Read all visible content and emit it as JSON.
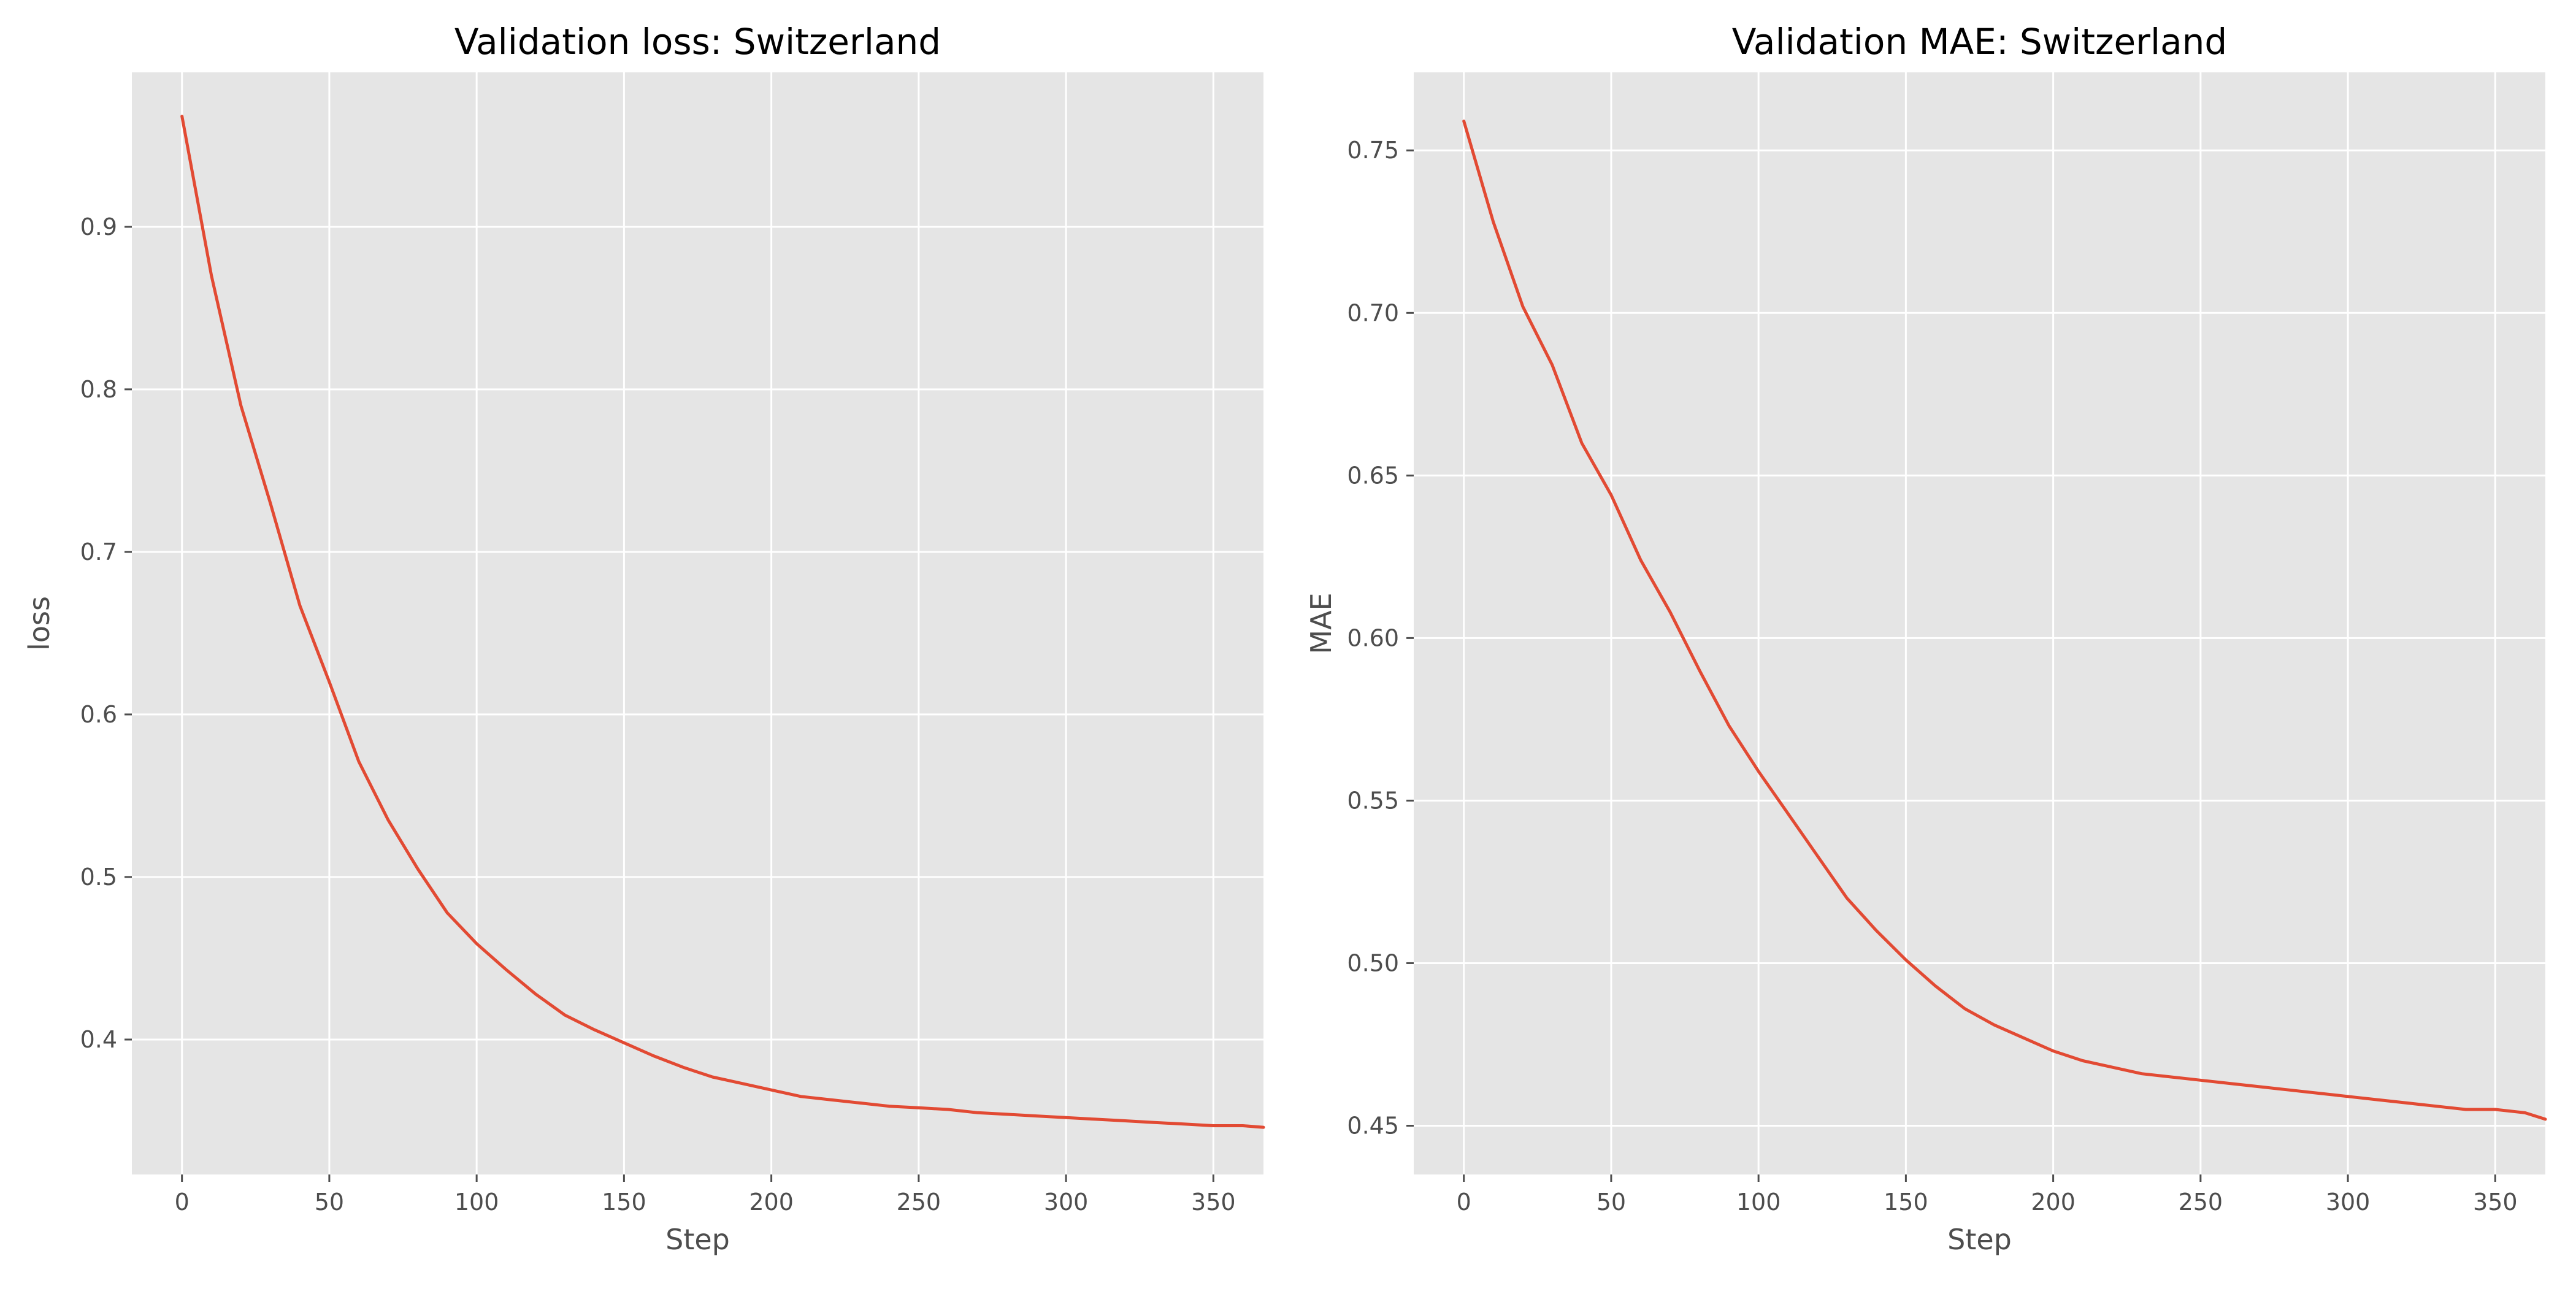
{
  "chart_data": [
    {
      "type": "line",
      "title": "Validation loss: Switzerland",
      "xlabel": "Step",
      "ylabel": "loss",
      "xlim": [
        -17,
        367
      ],
      "ylim": [
        0.317,
        0.995
      ],
      "xticks": [
        0,
        50,
        100,
        150,
        200,
        250,
        300,
        350
      ],
      "yticks": [
        0.4,
        0.5,
        0.6,
        0.7,
        0.8,
        0.9
      ],
      "ytick_labels": [
        "0.4",
        "0.5",
        "0.6",
        "0.7",
        "0.8",
        "0.9"
      ],
      "grid": true,
      "series": [
        {
          "color": "#e24a33",
          "x": [
            0,
            10,
            20,
            30,
            40,
            50,
            60,
            70,
            80,
            90,
            100,
            110,
            120,
            130,
            140,
            150,
            160,
            170,
            180,
            190,
            200,
            210,
            220,
            230,
            240,
            250,
            260,
            270,
            280,
            290,
            300,
            310,
            320,
            330,
            340,
            350,
            360,
            367
          ],
          "y": [
            0.968,
            0.87,
            0.79,
            0.73,
            0.667,
            0.62,
            0.571,
            0.535,
            0.505,
            0.478,
            0.459,
            0.443,
            0.428,
            0.415,
            0.406,
            0.398,
            0.39,
            0.383,
            0.377,
            0.373,
            0.369,
            0.365,
            0.363,
            0.361,
            0.359,
            0.358,
            0.357,
            0.355,
            0.354,
            0.353,
            0.352,
            0.351,
            0.35,
            0.349,
            0.348,
            0.347,
            0.347,
            0.346
          ]
        }
      ]
    },
    {
      "type": "line",
      "title": "Validation MAE: Switzerland",
      "xlabel": "Step",
      "ylabel": "MAE",
      "xlim": [
        -17,
        367
      ],
      "ylim": [
        0.435,
        0.774
      ],
      "xticks": [
        0,
        50,
        100,
        150,
        200,
        250,
        300,
        350
      ],
      "yticks": [
        0.45,
        0.5,
        0.55,
        0.6,
        0.65,
        0.7,
        0.75
      ],
      "ytick_labels": [
        "0.45",
        "0.50",
        "0.55",
        "0.60",
        "0.65",
        "0.70",
        "0.75"
      ],
      "grid": true,
      "series": [
        {
          "color": "#e24a33",
          "x": [
            0,
            10,
            20,
            30,
            40,
            50,
            60,
            70,
            80,
            90,
            100,
            110,
            120,
            130,
            140,
            150,
            160,
            170,
            180,
            190,
            200,
            210,
            220,
            230,
            240,
            250,
            260,
            270,
            280,
            290,
            300,
            310,
            320,
            330,
            340,
            350,
            360,
            367
          ],
          "y": [
            0.759,
            0.728,
            0.702,
            0.684,
            0.66,
            0.644,
            0.624,
            0.608,
            0.59,
            0.573,
            0.559,
            0.546,
            0.533,
            0.52,
            0.51,
            0.501,
            0.493,
            0.486,
            0.481,
            0.477,
            0.473,
            0.47,
            0.468,
            0.466,
            0.465,
            0.464,
            0.463,
            0.462,
            0.461,
            0.46,
            0.459,
            0.458,
            0.457,
            0.456,
            0.455,
            0.455,
            0.454,
            0.452
          ]
        }
      ]
    }
  ]
}
